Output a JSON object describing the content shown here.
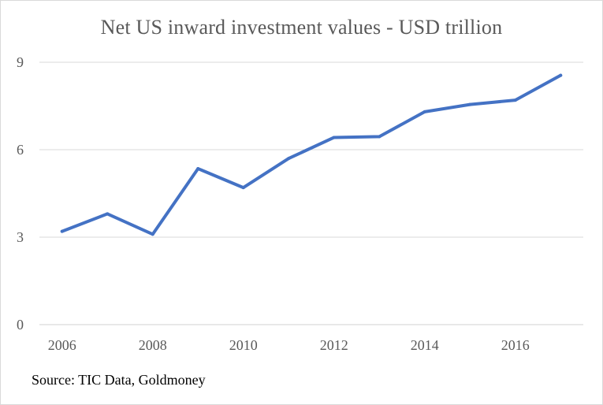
{
  "chart_data": {
    "type": "line",
    "title": "Net US inward investment values - USD trillion",
    "x": [
      2006,
      2007,
      2008,
      2009,
      2010,
      2011,
      2012,
      2013,
      2014,
      2015,
      2016,
      2017
    ],
    "series": [
      {
        "name": "Net US inward investment values",
        "values": [
          3.2,
          3.8,
          3.1,
          5.35,
          4.7,
          5.7,
          6.42,
          6.45,
          7.3,
          7.55,
          7.7,
          8.55
        ]
      }
    ],
    "x_ticks": [
      "2006",
      "2008",
      "2010",
      "2012",
      "2014",
      "2016"
    ],
    "y_ticks": [
      "0",
      "3",
      "6",
      "9"
    ],
    "ylim": [
      0,
      9
    ],
    "xlabel": "",
    "ylabel": "",
    "grid": true,
    "line_color": "#4472c4",
    "grid_color": "#d9d9d9"
  },
  "source": "Source: TIC Data, Goldmoney"
}
